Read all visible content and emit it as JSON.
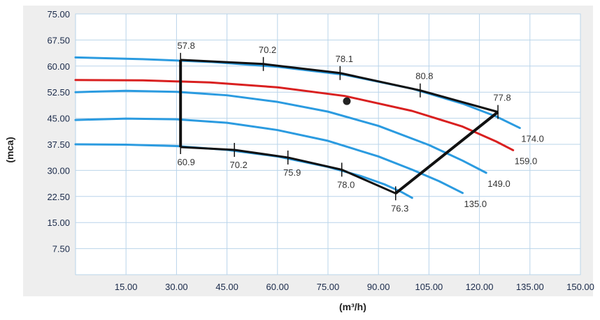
{
  "chart_data": {
    "type": "line",
    "xlabel": "(m³/h)",
    "ylabel": "(mca)",
    "xlim": [
      0,
      150
    ],
    "ylim": [
      0,
      75
    ],
    "x_ticks": [
      "15.00",
      "30.00",
      "45.00",
      "60.00",
      "75.00",
      "90.00",
      "105.00",
      "120.00",
      "135.00",
      "150.00"
    ],
    "y_ticks": [
      "7.50",
      "15.00",
      "22.50",
      "30.00",
      "37.50",
      "45.00",
      "52.50",
      "60.00",
      "67.50",
      "75.00"
    ],
    "grid": true,
    "colors": {
      "impeller": "#2b9be0",
      "selected": "#d92020",
      "boundary": "#111111",
      "grid": "#b9d4ea",
      "plot_bg": "#ffffff",
      "outer_bg": "#eeeeee"
    },
    "series": [
      {
        "name": "174.0",
        "color": "#2b9be0",
        "x": [
          0,
          20,
          40,
          60,
          80,
          100,
          115,
          125,
          132
        ],
        "y": [
          62.5,
          62.0,
          61.2,
          59.8,
          57.5,
          53.5,
          49.2,
          45.5,
          42.2
        ]
      },
      {
        "name": "159.0",
        "color": "#d92020",
        "x": [
          0,
          20,
          40,
          60,
          80,
          100,
          115,
          125,
          130
        ],
        "y": [
          56.0,
          55.9,
          55.3,
          53.9,
          51.4,
          47.1,
          42.6,
          38.3,
          35.8
        ]
      },
      {
        "name": "149.0",
        "color": "#2b9be0",
        "x": [
          0,
          15,
          30,
          45,
          60,
          75,
          90,
          105,
          115,
          122
        ],
        "y": [
          52.5,
          52.9,
          52.6,
          51.6,
          49.7,
          46.9,
          42.8,
          37.3,
          32.8,
          29.3
        ]
      },
      {
        "name": "135.0",
        "color": "#2b9be0",
        "x": [
          0,
          15,
          30,
          45,
          60,
          75,
          90,
          100,
          108,
          115
        ],
        "y": [
          44.5,
          44.9,
          44.7,
          43.7,
          41.6,
          38.5,
          34.0,
          30.2,
          26.9,
          23.5
        ]
      },
      {
        "name": "",
        "color": "#2b9be0",
        "x": [
          0,
          15,
          30,
          45,
          60,
          75,
          85,
          92,
          97,
          100
        ],
        "y": [
          37.5,
          37.4,
          37.0,
          35.9,
          34.0,
          31.0,
          28.3,
          25.9,
          23.7,
          22.1
        ]
      }
    ],
    "boundary": {
      "upper": {
        "x": [
          31.2,
          55.8,
          78.6,
          102.4,
          125.5
        ],
        "y": [
          61.8,
          60.6,
          58.0,
          53.0,
          46.8
        ]
      },
      "lower": {
        "x": [
          31.2,
          47.2,
          63.1,
          79.1,
          95.1
        ],
        "y": [
          36.7,
          35.9,
          33.7,
          30.2,
          23.4
        ]
      },
      "left": {
        "x": [
          31.2,
          31.2
        ],
        "y": [
          61.8,
          36.7
        ]
      },
      "right": {
        "x": [
          95.1,
          125.5
        ],
        "y": [
          23.4,
          46.8
        ]
      }
    },
    "operating_point": {
      "x": 80.6,
      "y": 49.9
    },
    "annotations": [
      {
        "text": "57.8",
        "x": 31.2,
        "y": 61.8
      },
      {
        "text": "70.2",
        "x": 55.8,
        "y": 60.6
      },
      {
        "text": "78.1",
        "x": 78.6,
        "y": 58.0
      },
      {
        "text": "80.8",
        "x": 102.4,
        "y": 53.0
      },
      {
        "text": "77.8",
        "x": 125.5,
        "y": 46.8
      },
      {
        "text": "60.9",
        "x": 31.2,
        "y": 36.7
      },
      {
        "text": "70.2",
        "x": 47.2,
        "y": 35.9
      },
      {
        "text": "75.9",
        "x": 63.1,
        "y": 33.7
      },
      {
        "text": "78.0",
        "x": 79.1,
        "y": 30.2
      },
      {
        "text": "76.3",
        "x": 95.1,
        "y": 23.4
      }
    ],
    "curve_labels": [
      {
        "text": "174.0",
        "series": "174.0"
      },
      {
        "text": "159.0",
        "series": "159.0"
      },
      {
        "text": "149.0",
        "series": "149.0"
      },
      {
        "text": "135.0",
        "series": "135.0"
      }
    ]
  }
}
